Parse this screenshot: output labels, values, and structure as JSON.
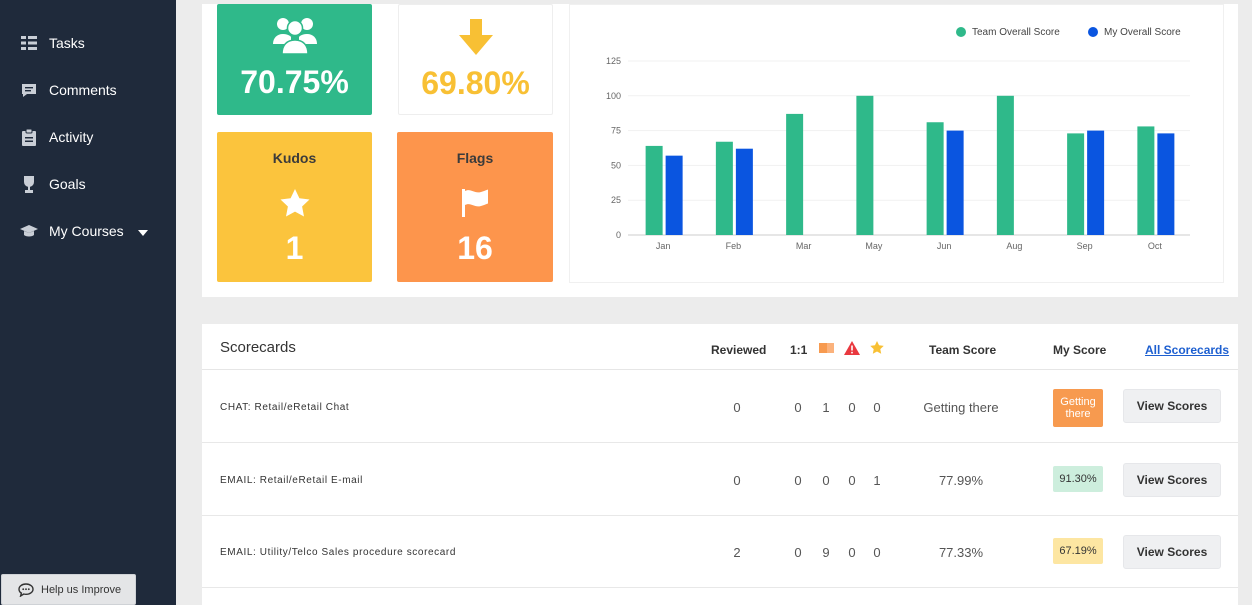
{
  "sidebar": {
    "items": [
      {
        "label": "Tasks",
        "icon": "tasks-icon"
      },
      {
        "label": "Comments",
        "icon": "comment-icon"
      },
      {
        "label": "Activity",
        "icon": "clipboard-icon"
      },
      {
        "label": "Goals",
        "icon": "trophy-icon"
      },
      {
        "label": "My Courses",
        "icon": "graduation-cap-icon"
      }
    ],
    "help_label": "Help us Improve"
  },
  "tiles": {
    "team_pct": "70.75%",
    "my_pct": "69.80%",
    "kudos_title": "Kudos",
    "kudos_count": "1",
    "flags_title": "Flags",
    "flags_count": "16"
  },
  "chart_data": {
    "type": "bar",
    "categories": [
      "Jan",
      "Feb",
      "Mar",
      "May",
      "Jun",
      "Aug",
      "Sep",
      "Oct"
    ],
    "series": [
      {
        "name": "Team Overall Score",
        "color": "#2fb98a",
        "values": [
          64,
          67,
          87,
          100,
          81,
          100,
          73,
          78
        ]
      },
      {
        "name": "My Overall Score",
        "color": "#0a55e0",
        "values": [
          57,
          62,
          null,
          null,
          75,
          null,
          75,
          73
        ]
      }
    ],
    "yticks": [
      0,
      25,
      50,
      75,
      100,
      125
    ],
    "ylim": [
      0,
      125
    ],
    "legend": "top-right",
    "grid": true
  },
  "scorecards": {
    "title": "Scorecards",
    "headers": {
      "reviewed": "Reviewed",
      "one_on_one": "1:1",
      "team_score": "Team Score",
      "my_score": "My Score",
      "all_link": "All Scorecards"
    },
    "rows": [
      {
        "name": "CHAT: Retail/eRetail Chat",
        "reviewed": "0",
        "one_on_one": "0",
        "flags": "1",
        "alerts": "0",
        "stars": "0",
        "team_score": "Getting there",
        "my_score": "Getting there",
        "my_score_bg": "#f79a4f",
        "my_score_fg": "#ffffff",
        "button": "View Scores"
      },
      {
        "name": "EMAIL: Retail/eRetail E-mail",
        "reviewed": "0",
        "one_on_one": "0",
        "flags": "0",
        "alerts": "0",
        "stars": "1",
        "team_score": "77.99%",
        "my_score": "91.30%",
        "my_score_bg": "#cdeedd",
        "my_score_fg": "#333333",
        "button": "View Scores"
      },
      {
        "name": "EMAIL: Utility/Telco Sales procedure scorecard",
        "reviewed": "2",
        "one_on_one": "0",
        "flags": "9",
        "alerts": "0",
        "stars": "0",
        "team_score": "77.33%",
        "my_score": "67.19%",
        "my_score_bg": "#fde6a2",
        "my_score_fg": "#333333",
        "button": "View Scores"
      }
    ]
  }
}
